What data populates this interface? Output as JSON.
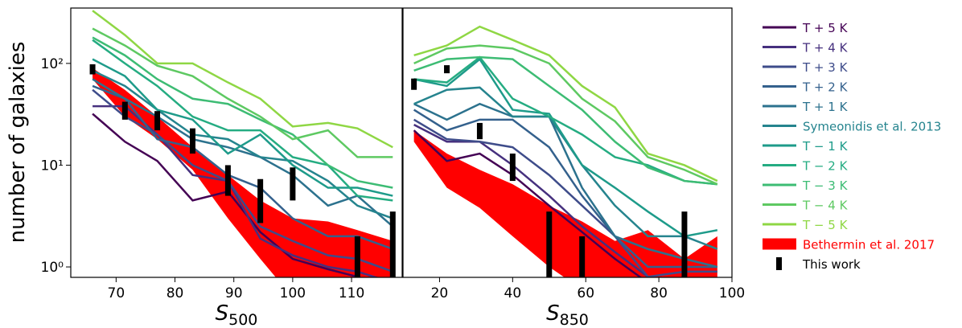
{
  "chart_data": {
    "type": "line",
    "yscale": "log",
    "ylabel": "number of galaxies",
    "ylim": [
      0.79,
      350
    ],
    "yticks": [
      {
        "value": 1,
        "label": "10⁰"
      },
      {
        "value": 10,
        "label": "10¹"
      },
      {
        "value": 100,
        "label": "10²"
      }
    ],
    "legend": "outside right",
    "panels": [
      {
        "xlabel": "S",
        "xlabel_sub": "500",
        "xlim": [
          62.3,
          118.6
        ],
        "xticks": [
          70,
          80,
          90,
          100,
          110
        ],
        "x": [
          66,
          71.5,
          77,
          83,
          89,
          94.5,
          100,
          106,
          111,
          117
        ]
      },
      {
        "xlabel": "S",
        "xlabel_sub": "850",
        "xlim": [
          10,
          100
        ],
        "xticks": [
          20,
          40,
          60,
          80,
          100
        ],
        "x": [
          13,
          22,
          31,
          40,
          50,
          59,
          68,
          77,
          87,
          96
        ]
      }
    ],
    "series": [
      {
        "name": "T + 5 K",
        "color": "#440154",
        "values": [
          [
            32,
            17,
            11,
            4.5,
            5.5,
            2.2,
            1.2,
            0.95,
            0.8,
            0.6
          ],
          [
            22,
            11,
            13,
            8,
            4,
            2.2,
            1.2,
            0.7,
            0.6,
            0.5
          ]
        ]
      },
      {
        "name": "T + 4 K",
        "color": "#46307e",
        "values": [
          [
            38,
            38,
            20,
            8,
            7,
            1.9,
            1.3,
            1.0,
            0.9,
            0.7
          ],
          [
            25,
            17,
            17,
            10,
            5,
            2.5,
            1.4,
            0.8,
            0.7,
            0.6
          ]
        ]
      },
      {
        "name": "T + 3 K",
        "color": "#3e4c8a",
        "values": [
          [
            55,
            30,
            20,
            10,
            7,
            2.5,
            1.8,
            1.3,
            1.2,
            0.9
          ],
          [
            28,
            18,
            17,
            15,
            8,
            4,
            2,
            0.8,
            0.9,
            0.9
          ]
        ]
      },
      {
        "name": "T + 2 K",
        "color": "#34618d",
        "values": [
          [
            60,
            45,
            18,
            15,
            8,
            6,
            3,
            2,
            2,
            1.5
          ],
          [
            35,
            22,
            28,
            28,
            15,
            5,
            2,
            1,
            1,
            1
          ]
        ]
      },
      {
        "name": "T + 1 K",
        "color": "#2c728e",
        "values": [
          [
            70,
            45,
            30,
            18,
            15,
            12,
            8,
            4,
            5,
            2.5
          ],
          [
            40,
            28,
            40,
            30,
            30,
            6,
            2,
            1.5,
            1.2,
            1.0
          ]
        ]
      },
      {
        "name": "Symeonidis et al. 2013",
        "color": "#25848e",
        "values": [
          [
            85,
            60,
            35,
            20,
            18,
            12,
            11,
            7,
            4,
            3
          ],
          [
            40,
            55,
            58,
            30,
            30,
            10,
            4,
            2,
            2,
            1.5
          ]
        ]
      },
      {
        "name": "T − 1 K",
        "color": "#1e9b8a",
        "values": [
          [
            110,
            75,
            35,
            28,
            13,
            20,
            10,
            6,
            6,
            5
          ],
          [
            70,
            60,
            110,
            35,
            32,
            10,
            6,
            3.5,
            2,
            2.3
          ]
        ]
      },
      {
        "name": "T − 2 K",
        "color": "#25ac82",
        "values": [
          [
            170,
            100,
            60,
            30,
            22,
            22,
            12,
            10,
            5,
            4.5
          ],
          [
            70,
            65,
            115,
            45,
            30,
            20,
            12,
            10,
            7,
            6.5
          ]
        ]
      },
      {
        "name": "T − 3 K",
        "color": "#3dbc74",
        "values": [
          [
            180,
            120,
            70,
            45,
            40,
            28,
            20,
            10,
            7,
            6
          ],
          [
            85,
            110,
            115,
            110,
            60,
            35,
            17,
            9.5,
            7,
            6.5
          ]
        ]
      },
      {
        "name": "T − 4 K",
        "color": "#5ec962",
        "values": [
          [
            220,
            150,
            95,
            75,
            45,
            30,
            18,
            22,
            12,
            12
          ],
          [
            100,
            140,
            150,
            140,
            100,
            45,
            27,
            12,
            9,
            6.5
          ]
        ]
      },
      {
        "name": "T − 5 K",
        "color": "#8fd744",
        "values": [
          [
            330,
            190,
            100,
            100,
            65,
            45,
            24,
            26,
            23,
            15
          ],
          [
            120,
            150,
            230,
            170,
            120,
            60,
            37,
            13,
            10,
            7
          ]
        ]
      }
    ],
    "band": {
      "name": "Bethermin et al. 2017",
      "color": "#ff0000",
      "upper": [
        [
          90,
          55,
          30,
          15,
          8,
          4.5,
          3,
          2.8,
          2.3,
          1.8
        ],
        [
          22,
          13,
          9,
          6.5,
          4,
          2.8,
          1.8,
          2.3,
          1.2,
          2
        ]
      ],
      "lower": [
        [
          70,
          30,
          18,
          9,
          3,
          1.2,
          0.5,
          0.4,
          0.4,
          0.4
        ],
        [
          17,
          6,
          3.8,
          2,
          1,
          0.6,
          0.5,
          0.5,
          0.5,
          0.5
        ]
      ]
    },
    "points": {
      "name": "This work",
      "color": "#000000",
      "x": [
        [
          66,
          71.5,
          77,
          83,
          89,
          94.5,
          100,
          111,
          117
        ],
        [
          13,
          22,
          31,
          40,
          50,
          59,
          87
        ]
      ],
      "values": [
        [
          88,
          35,
          28,
          18,
          7.5,
          5,
          7,
          1.3,
          2
        ],
        [
          63,
          88,
          22,
          10,
          2,
          1.2,
          2
        ]
      ],
      "errors": [
        [
          10,
          7,
          6,
          5,
          2.5,
          2.3,
          2.5,
          0.7,
          1.5
        ],
        [
          8,
          8,
          4,
          3,
          1.5,
          0.8,
          1.5
        ]
      ]
    }
  }
}
